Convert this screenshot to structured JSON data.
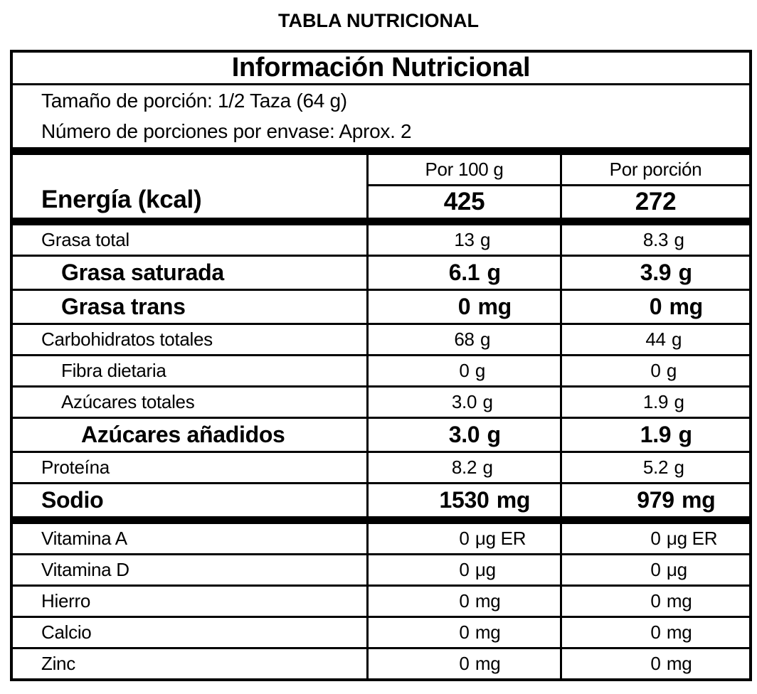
{
  "page_title": "TABLA NUTRICIONAL",
  "label": {
    "title": "Información Nutricional",
    "serving_size": "Tamaño de porción: 1/2 Taza (64 g)",
    "servings_per_container": "Número de porciones por envase: Aprox. 2",
    "columns": {
      "per_100g": "Por 100 g",
      "per_serving": "Por porción"
    },
    "energy": {
      "label": "Energía (kcal)",
      "per_100g": "425",
      "per_serving": "272"
    },
    "nutrients": [
      {
        "label": "Grasa total",
        "per_100g": {
          "num": "13",
          "unit": "g"
        },
        "per_serving": {
          "num": "8.3",
          "unit": "g"
        }
      },
      {
        "label": "Grasa saturada",
        "per_100g": {
          "num": "6.1",
          "unit": "g"
        },
        "per_serving": {
          "num": "3.9",
          "unit": "g"
        }
      },
      {
        "label": "Grasa trans",
        "per_100g": {
          "num": "0",
          "unit": "mg"
        },
        "per_serving": {
          "num": "0",
          "unit": "mg"
        }
      },
      {
        "label": "Carbohidratos totales",
        "per_100g": {
          "num": "68",
          "unit": "g"
        },
        "per_serving": {
          "num": "44",
          "unit": "g"
        }
      },
      {
        "label": "Fibra dietaria",
        "per_100g": {
          "num": "0",
          "unit": "g"
        },
        "per_serving": {
          "num": "0",
          "unit": "g"
        }
      },
      {
        "label": "Azúcares totales",
        "per_100g": {
          "num": "3.0",
          "unit": "g"
        },
        "per_serving": {
          "num": "1.9",
          "unit": "g"
        }
      },
      {
        "label": "Azúcares añadidos",
        "per_100g": {
          "num": "3.0",
          "unit": "g"
        },
        "per_serving": {
          "num": "1.9",
          "unit": "g"
        }
      },
      {
        "label": "Proteína",
        "per_100g": {
          "num": "8.2",
          "unit": "g"
        },
        "per_serving": {
          "num": "5.2",
          "unit": "g"
        }
      },
      {
        "label": "Sodio",
        "per_100g": {
          "num": "1530",
          "unit": "mg"
        },
        "per_serving": {
          "num": "979",
          "unit": "mg"
        }
      }
    ],
    "micronutrients": [
      {
        "label": "Vitamina A",
        "per_100g": {
          "num": "0",
          "unit": "μg ER"
        },
        "per_serving": {
          "num": "0",
          "unit": "μg ER"
        }
      },
      {
        "label": "Vitamina D",
        "per_100g": {
          "num": "0",
          "unit": "μg"
        },
        "per_serving": {
          "num": "0",
          "unit": "μg"
        }
      },
      {
        "label": "Hierro",
        "per_100g": {
          "num": "0",
          "unit": "mg"
        },
        "per_serving": {
          "num": "0",
          "unit": "mg"
        }
      },
      {
        "label": "Calcio",
        "per_100g": {
          "num": "0",
          "unit": "mg"
        },
        "per_serving": {
          "num": "0",
          "unit": "mg"
        }
      },
      {
        "label": "Zinc",
        "per_100g": {
          "num": "0",
          "unit": "mg"
        },
        "per_serving": {
          "num": "0",
          "unit": "mg"
        }
      }
    ]
  },
  "colors": {
    "text": "#000000",
    "background": "#ffffff",
    "border": "#000000"
  }
}
